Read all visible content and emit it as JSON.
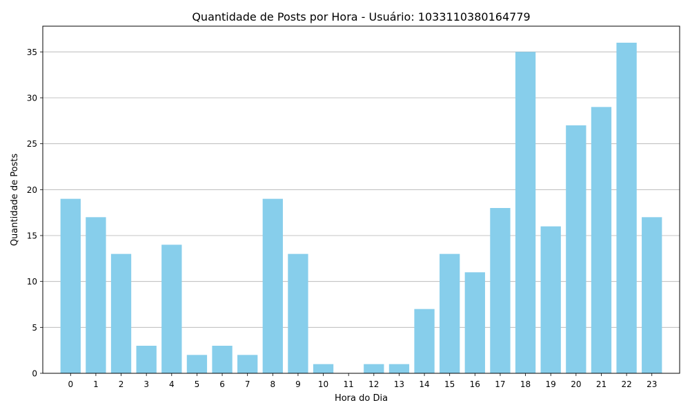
{
  "chart_data": {
    "type": "bar",
    "title": "Quantidade de Posts por Hora - Usuário: 1033110380164779",
    "xlabel": "Hora do Dia",
    "ylabel": "Quantidade de Posts",
    "categories": [
      "0",
      "1",
      "2",
      "3",
      "4",
      "5",
      "6",
      "7",
      "8",
      "9",
      "10",
      "11",
      "12",
      "13",
      "14",
      "15",
      "16",
      "17",
      "18",
      "19",
      "20",
      "21",
      "22",
      "23"
    ],
    "values": [
      19,
      17,
      13,
      3,
      14,
      2,
      3,
      2,
      19,
      13,
      1,
      0,
      1,
      1,
      7,
      13,
      11,
      18,
      35,
      16,
      27,
      29,
      36,
      17
    ],
    "yticks": [
      0,
      5,
      10,
      15,
      20,
      25,
      30,
      35
    ],
    "ylim": [
      0,
      37.8
    ],
    "grid": "horizontal",
    "bar_color": "#87CEEB"
  }
}
